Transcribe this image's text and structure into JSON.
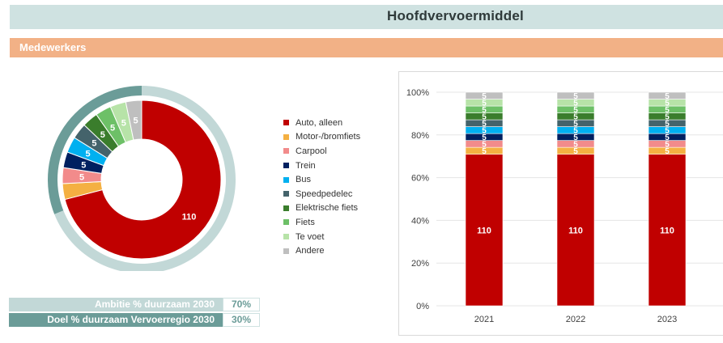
{
  "header": {
    "title": "Hoofdvervoermiddel"
  },
  "section": {
    "title": "Medewerkers"
  },
  "colors": {
    "title_bg": "#cfe2e1",
    "section_bg": "#f2b186",
    "outer_ring_sustainable": "#6b9c98",
    "outer_ring_other": "#c2d8d7",
    "kpi_ambition_bg": "#c2d8d7",
    "kpi_goal_bg": "#6b9c98",
    "kpi_value_text": "#6b9c98"
  },
  "legend": [
    {
      "label": "Auto, alleen",
      "color": "#c00000"
    },
    {
      "label": "Motor-/bromfiets",
      "color": "#f4b042"
    },
    {
      "label": "Carpool",
      "color": "#f28b8b"
    },
    {
      "label": "Trein",
      "color": "#002060"
    },
    {
      "label": "Bus",
      "color": "#00b0f0"
    },
    {
      "label": "Speedpedelec",
      "color": "#44636b"
    },
    {
      "label": "Elektrische fiets",
      "color": "#3a7d2c"
    },
    {
      "label": "Fiets",
      "color": "#6dc067"
    },
    {
      "label": "Te voet",
      "color": "#b7e3a8"
    },
    {
      "label": "Andere",
      "color": "#bfbfbf"
    }
  ],
  "chart_data": [
    {
      "type": "pie",
      "variant": "doughnut",
      "categories": [
        "Auto, alleen",
        "Motor-/bromfiets",
        "Carpool",
        "Trein",
        "Bus",
        "Speedpedelec",
        "Elektrische fiets",
        "Fiets",
        "Te voet",
        "Andere"
      ],
      "values": [
        110,
        5,
        5,
        5,
        5,
        5,
        5,
        5,
        5,
        5
      ],
      "data_labels": [
        "110",
        "",
        "5",
        "5",
        "5",
        "5",
        "5",
        "5",
        "5",
        "5"
      ],
      "outer_ring": {
        "sustainable_share": 0.31,
        "other_share": 0.69
      }
    },
    {
      "type": "bar",
      "stacked": "percent",
      "categories": [
        "2021",
        "2022",
        "2023"
      ],
      "series": [
        {
          "name": "Auto, alleen",
          "values": [
            110,
            110,
            110
          ]
        },
        {
          "name": "Motor-/bromfiets",
          "values": [
            5,
            5,
            5
          ]
        },
        {
          "name": "Carpool",
          "values": [
            5,
            5,
            5
          ]
        },
        {
          "name": "Trein",
          "values": [
            5,
            5,
            5
          ]
        },
        {
          "name": "Bus",
          "values": [
            5,
            5,
            5
          ]
        },
        {
          "name": "Speedpedelec",
          "values": [
            5,
            5,
            5
          ]
        },
        {
          "name": "Elektrische fiets",
          "values": [
            5,
            5,
            5
          ]
        },
        {
          "name": "Fiets",
          "values": [
            5,
            5,
            5
          ]
        },
        {
          "name": "Te voet",
          "values": [
            5,
            5,
            5
          ]
        },
        {
          "name": "Andere",
          "values": [
            5,
            5,
            5
          ]
        }
      ],
      "yticks": [
        "0%",
        "20%",
        "40%",
        "60%",
        "80%",
        "100%"
      ],
      "ylim": [
        0,
        100
      ]
    }
  ],
  "kpis": [
    {
      "label": "Ambitie % duurzaam 2030",
      "value": "70%"
    },
    {
      "label": "Doel % duurzaam Vervoerregio 2030",
      "value": "30%"
    }
  ]
}
